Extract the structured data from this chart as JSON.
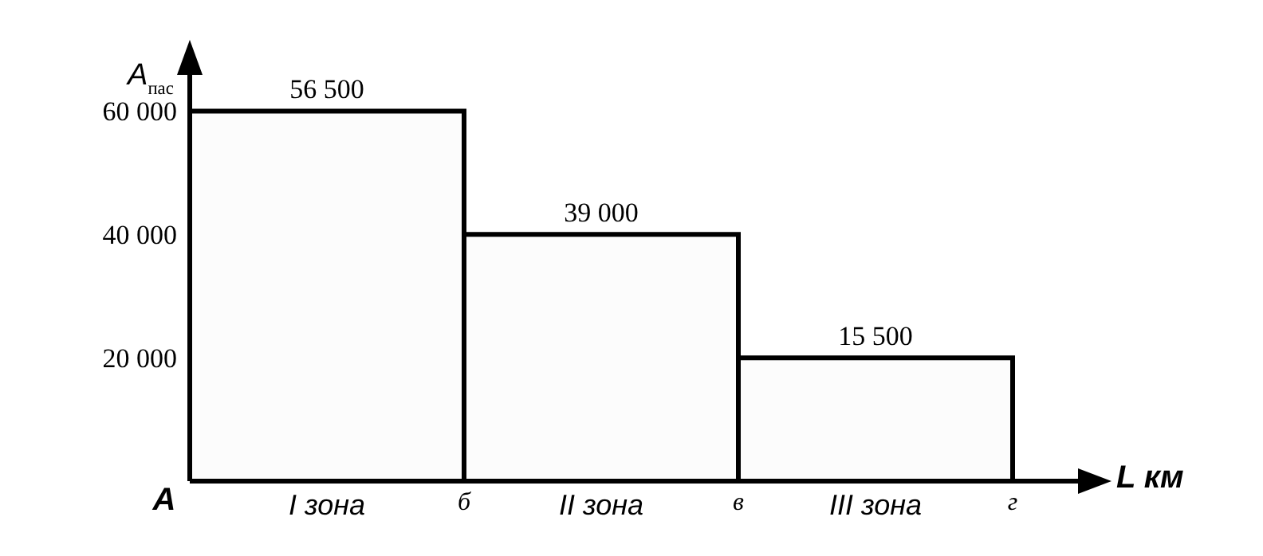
{
  "chart_data": {
    "type": "bar",
    "categories": [
      "I зона",
      "II зона",
      "III зона"
    ],
    "values": [
      60000,
      40000,
      20000
    ],
    "colors": [
      "#fcfcfc",
      "#fcfcfc",
      "#fcfcfc"
    ],
    "xlabel": "L км",
    "ylabel": "A$_{пас}$",
    "ylim": [
      0,
      70000
    ],
    "yticks": [
      {
        "value": 20000,
        "label": "20 000"
      },
      {
        "value": 40000,
        "label": "40 000"
      },
      {
        "value": 60000,
        "label": "60 000"
      }
    ],
    "annotations": [
      "А",
      "б",
      "в",
      "г",
      {
        "text": "56 500",
        "x": "I зона",
        "y": 60000
      },
      {
        "text": "39 000",
        "x": "II зона",
        "y": 40000
      },
      {
        "text": "15 500",
        "x": "III зона",
        "y": 20000
      }
    ],
    "grid": false,
    "legend": false
  }
}
